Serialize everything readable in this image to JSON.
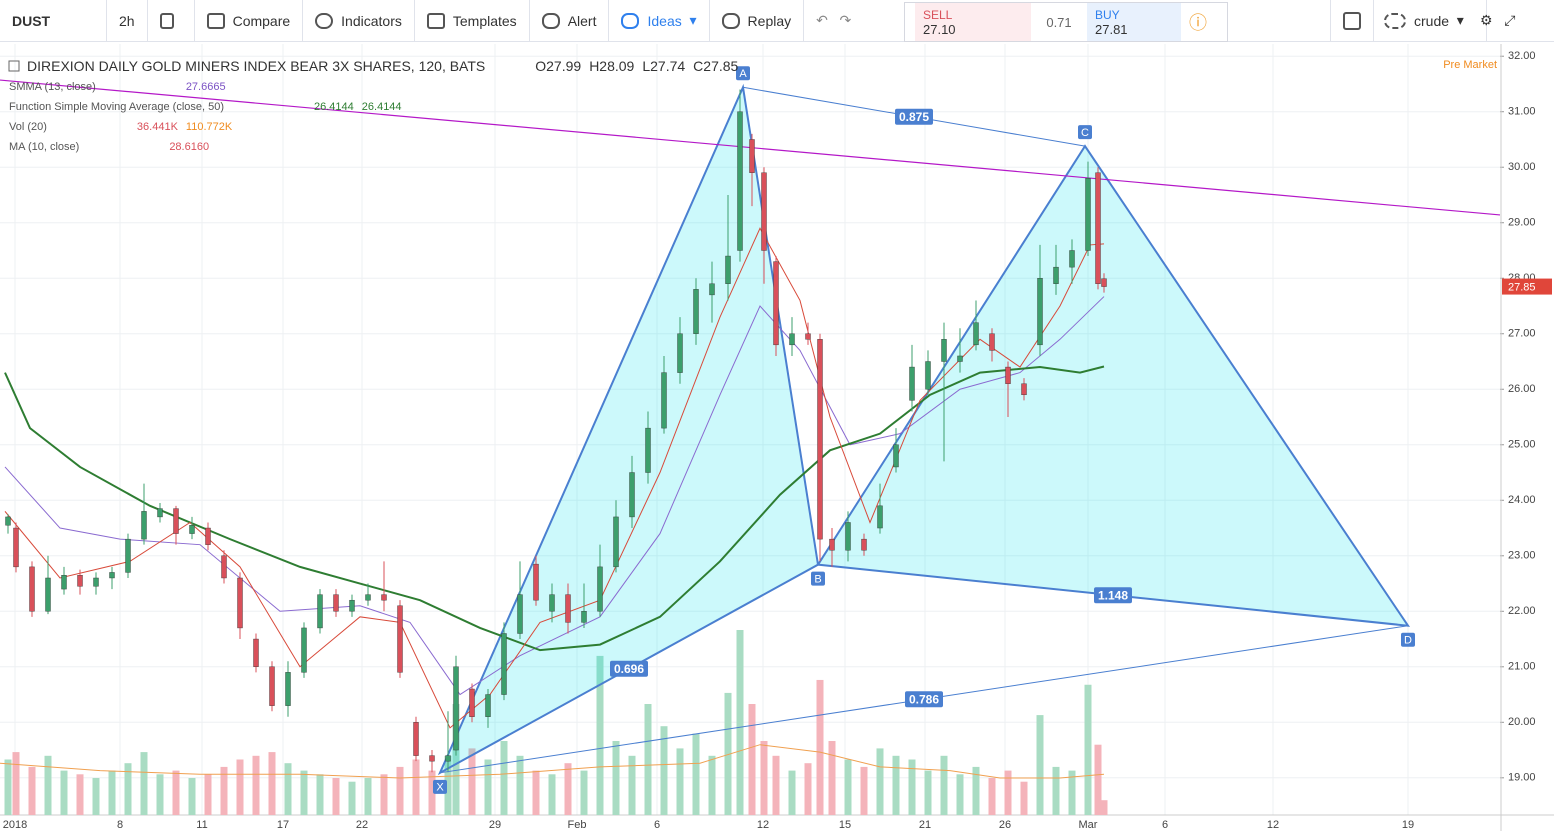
{
  "toolbar": {
    "symbol": "DUST",
    "interval": "2h",
    "items": [
      "Compare",
      "Indicators",
      "Templates",
      "Alert",
      "Ideas",
      "Replay"
    ],
    "sell_label": "SELL",
    "sell_price": "27.10",
    "spread": "0.71",
    "buy_label": "BUY",
    "buy_price": "27.81",
    "layout": "crude"
  },
  "chart_data": {
    "type": "candlestick",
    "title": "DIREXION DAILY GOLD MINERS INDEX BEAR 3X SHARES, 120, BATS",
    "ohlc": [
      {
        "value": 27.99,
        "label": "O27.99"
      },
      {
        "value": 28.09,
        "label": "H28.09"
      },
      {
        "value": 27.74,
        "label": "L27.74"
      },
      {
        "value": 27.85,
        "label": "C27.85"
      }
    ],
    "pre_market": "Pre Market",
    "last_price": 27.85,
    "ylim": [
      18.33,
      32.22
    ],
    "yticks": [
      {
        "value": 19,
        "label": "19.00"
      },
      {
        "value": 20,
        "label": "20.00"
      },
      {
        "value": 21,
        "label": "21.00"
      },
      {
        "value": 22,
        "label": "22.00"
      },
      {
        "value": 23,
        "label": "23.00"
      },
      {
        "value": 24,
        "label": "24.00"
      },
      {
        "value": 25,
        "label": "25.00"
      },
      {
        "value": 26,
        "label": "26.00"
      },
      {
        "value": 27,
        "label": "27.00"
      },
      {
        "value": 28,
        "label": "28.00"
      },
      {
        "value": 29,
        "label": "29.00"
      },
      {
        "value": 30,
        "label": "30.00"
      },
      {
        "value": 31,
        "label": "31.00"
      },
      {
        "value": 32,
        "label": "32.00"
      }
    ],
    "xlim": [
      0,
      1500
    ],
    "xticks": [
      {
        "value": 15,
        "label": "2018"
      },
      {
        "value": 120,
        "label": "8"
      },
      {
        "value": 202,
        "label": "11"
      },
      {
        "value": 283,
        "label": "17"
      },
      {
        "value": 362,
        "label": "22"
      },
      {
        "value": 495,
        "label": "29"
      },
      {
        "value": 577,
        "label": "Feb"
      },
      {
        "value": 657,
        "label": "6"
      },
      {
        "value": 763,
        "label": "12"
      },
      {
        "value": 845,
        "label": "15"
      },
      {
        "value": 925,
        "label": "21"
      },
      {
        "value": 1005,
        "label": "26"
      },
      {
        "value": 1088,
        "label": "Mar"
      },
      {
        "value": 1165,
        "label": "6"
      },
      {
        "value": 1273,
        "label": "12"
      },
      {
        "value": 1408,
        "label": "19"
      }
    ],
    "colors": {
      "up": "#3c9f6c",
      "down": "#d9505a",
      "vol_up": "#a9dcc3",
      "vol_down": "#f4b3ba"
    },
    "candles": [
      [
        8,
        23.55,
        23.75,
        23.4,
        23.7,
        150
      ],
      [
        16,
        23.5,
        23.6,
        22.7,
        22.8,
        170
      ],
      [
        32,
        22.8,
        22.9,
        21.9,
        22.0,
        130
      ],
      [
        48,
        22.0,
        23.0,
        21.95,
        22.6,
        160
      ],
      [
        64,
        22.4,
        22.8,
        22.3,
        22.65,
        120
      ],
      [
        80,
        22.65,
        22.75,
        22.3,
        22.45,
        110
      ],
      [
        96,
        22.45,
        22.7,
        22.3,
        22.6,
        100
      ],
      [
        112,
        22.6,
        22.8,
        22.4,
        22.7,
        120
      ],
      [
        128,
        22.7,
        23.4,
        22.6,
        23.3,
        140
      ],
      [
        144,
        23.3,
        24.3,
        23.2,
        23.8,
        170
      ],
      [
        160,
        23.7,
        23.95,
        23.6,
        23.85,
        110
      ],
      [
        176,
        23.85,
        23.9,
        23.2,
        23.4,
        120
      ],
      [
        192,
        23.4,
        23.7,
        23.3,
        23.55,
        100
      ],
      [
        208,
        23.5,
        23.6,
        23.1,
        23.2,
        110
      ],
      [
        224,
        23.0,
        23.1,
        22.5,
        22.6,
        130
      ],
      [
        240,
        22.6,
        22.7,
        21.5,
        21.7,
        150
      ],
      [
        256,
        21.5,
        21.6,
        20.9,
        21.0,
        160
      ],
      [
        272,
        21.0,
        21.1,
        20.2,
        20.3,
        170
      ],
      [
        288,
        20.3,
        21.1,
        20.1,
        20.9,
        140
      ],
      [
        304,
        20.9,
        21.8,
        20.8,
        21.7,
        120
      ],
      [
        320,
        21.7,
        22.4,
        21.6,
        22.3,
        110
      ],
      [
        336,
        22.3,
        22.4,
        21.9,
        22.0,
        100
      ],
      [
        352,
        22.0,
        22.3,
        21.9,
        22.2,
        90
      ],
      [
        368,
        22.2,
        22.5,
        22.1,
        22.3,
        100
      ],
      [
        384,
        22.3,
        22.9,
        22.0,
        22.2,
        110
      ],
      [
        400,
        22.1,
        22.2,
        20.8,
        20.9,
        130
      ],
      [
        416,
        20.0,
        20.1,
        19.3,
        19.4,
        150
      ],
      [
        432,
        19.4,
        19.5,
        19.1,
        19.3,
        120
      ],
      [
        448,
        19.3,
        20.2,
        19.1,
        19.4,
        160
      ],
      [
        456,
        19.5,
        21.2,
        19.4,
        21.0,
        300
      ],
      [
        472,
        20.6,
        20.7,
        20.0,
        20.1,
        180
      ],
      [
        488,
        20.1,
        20.6,
        19.9,
        20.5,
        150
      ],
      [
        504,
        20.5,
        21.8,
        20.4,
        21.6,
        200
      ],
      [
        520,
        21.6,
        22.9,
        21.5,
        22.3,
        160
      ],
      [
        536,
        22.85,
        23.0,
        22.1,
        22.2,
        120
      ],
      [
        552,
        22.0,
        22.5,
        21.8,
        22.3,
        110
      ],
      [
        568,
        22.3,
        22.5,
        21.6,
        21.8,
        140
      ],
      [
        584,
        21.8,
        22.5,
        21.7,
        22.0,
        120
      ],
      [
        600,
        22.0,
        23.2,
        21.9,
        22.8,
        430
      ],
      [
        616,
        22.8,
        24.0,
        22.7,
        23.7,
        200
      ],
      [
        632,
        23.7,
        24.8,
        23.5,
        24.5,
        160
      ],
      [
        648,
        24.5,
        25.6,
        24.3,
        25.3,
        300
      ],
      [
        664,
        25.3,
        26.6,
        25.2,
        26.3,
        240
      ],
      [
        680,
        26.3,
        27.3,
        26.1,
        27.0,
        180
      ],
      [
        696,
        27.0,
        28.0,
        26.8,
        27.8,
        220
      ],
      [
        712,
        27.7,
        28.3,
        27.2,
        27.9,
        160
      ],
      [
        728,
        27.9,
        29.5,
        27.6,
        28.4,
        330
      ],
      [
        740,
        28.5,
        31.4,
        28.3,
        31.0,
        500
      ],
      [
        752,
        30.5,
        30.6,
        29.3,
        29.9,
        300
      ],
      [
        764,
        29.9,
        30.0,
        27.9,
        28.5,
        200
      ],
      [
        776,
        28.3,
        28.4,
        26.6,
        26.8,
        160
      ],
      [
        792,
        26.8,
        27.3,
        26.6,
        27.0,
        120
      ],
      [
        808,
        27.0,
        27.2,
        26.8,
        26.9,
        140
      ],
      [
        820,
        26.9,
        27.0,
        22.9,
        23.3,
        365
      ],
      [
        832,
        23.3,
        23.5,
        22.8,
        23.1,
        200
      ],
      [
        848,
        23.1,
        23.8,
        22.9,
        23.6,
        150
      ],
      [
        864,
        23.3,
        23.4,
        23.0,
        23.1,
        130
      ],
      [
        880,
        23.5,
        24.3,
        23.4,
        23.9,
        180
      ],
      [
        896,
        24.6,
        25.3,
        24.5,
        25.0,
        160
      ],
      [
        912,
        25.8,
        26.8,
        25.6,
        26.4,
        150
      ],
      [
        928,
        26.0,
        26.7,
        25.9,
        26.5,
        120
      ],
      [
        944,
        26.5,
        27.2,
        24.7,
        26.9,
        160
      ],
      [
        960,
        26.5,
        27.1,
        26.3,
        26.6,
        110
      ],
      [
        976,
        26.8,
        27.6,
        26.7,
        27.2,
        130
      ],
      [
        992,
        27.0,
        27.1,
        26.5,
        26.7,
        100
      ],
      [
        1008,
        26.4,
        26.5,
        25.5,
        26.1,
        120
      ],
      [
        1024,
        26.1,
        26.2,
        25.8,
        25.9,
        90
      ],
      [
        1040,
        26.8,
        28.6,
        26.6,
        28.0,
        270
      ],
      [
        1056,
        27.9,
        28.6,
        27.7,
        28.2,
        130
      ],
      [
        1072,
        28.2,
        28.7,
        27.9,
        28.5,
        120
      ],
      [
        1088,
        28.5,
        30.1,
        28.4,
        29.8,
        352
      ],
      [
        1098,
        29.9,
        30.0,
        27.8,
        27.9,
        190
      ],
      [
        1104,
        27.99,
        28.09,
        27.74,
        27.85,
        40
      ]
    ],
    "indicators": [
      {
        "name": "SMMA (13, close)",
        "values": [
          "27.6665"
        ],
        "color": "#8a6ad0",
        "vcolor": "#7b52c4",
        "points": [
          [
            5,
            24.6
          ],
          [
            60,
            23.5
          ],
          [
            120,
            23.3
          ],
          [
            200,
            23.2
          ],
          [
            280,
            22.0
          ],
          [
            360,
            22.1
          ],
          [
            410,
            21.8
          ],
          [
            460,
            20.5
          ],
          [
            520,
            21.2
          ],
          [
            600,
            21.9
          ],
          [
            660,
            23.4
          ],
          [
            720,
            25.9
          ],
          [
            760,
            27.5
          ],
          [
            800,
            26.7
          ],
          [
            850,
            25.0
          ],
          [
            900,
            25.2
          ],
          [
            960,
            26.0
          ],
          [
            1020,
            26.3
          ],
          [
            1060,
            26.9
          ],
          [
            1104,
            27.67
          ]
        ]
      },
      {
        "name": "Function Simple Moving Average (close, 50)",
        "values": [
          "26.4144",
          "26.4144"
        ],
        "color": "#2e7d32",
        "vcolor": "#2e7d32",
        "points": [
          [
            5,
            26.3
          ],
          [
            30,
            25.3
          ],
          [
            80,
            24.6
          ],
          [
            150,
            23.9
          ],
          [
            230,
            23.3
          ],
          [
            300,
            22.8
          ],
          [
            360,
            22.5
          ],
          [
            420,
            22.2
          ],
          [
            480,
            21.7
          ],
          [
            540,
            21.3
          ],
          [
            600,
            21.4
          ],
          [
            660,
            21.9
          ],
          [
            720,
            22.9
          ],
          [
            780,
            24.1
          ],
          [
            830,
            24.9
          ],
          [
            880,
            25.2
          ],
          [
            930,
            25.9
          ],
          [
            980,
            26.3
          ],
          [
            1040,
            26.4
          ],
          [
            1080,
            26.3
          ],
          [
            1104,
            26.41
          ]
        ]
      },
      {
        "name": "Vol (20)",
        "values": [
          "36.441K",
          "110.772K"
        ],
        "color": "#f0a050",
        "vcolor": "#d9505a",
        "volume": true,
        "points": [
          [
            0,
            140
          ],
          [
            100,
            120
          ],
          [
            200,
            110
          ],
          [
            300,
            110
          ],
          [
            400,
            100
          ],
          [
            500,
            110
          ],
          [
            600,
            130
          ],
          [
            700,
            140
          ],
          [
            760,
            190
          ],
          [
            820,
            170
          ],
          [
            880,
            130
          ],
          [
            950,
            120
          ],
          [
            1000,
            100
          ],
          [
            1060,
            100
          ],
          [
            1104,
            110
          ]
        ]
      },
      {
        "name": "MA (10, close)",
        "values": [
          "28.6160"
        ],
        "color": "#d84a3a",
        "vcolor": "#d9505a",
        "points": [
          [
            5,
            23.8
          ],
          [
            60,
            22.6
          ],
          [
            130,
            22.9
          ],
          [
            190,
            23.6
          ],
          [
            240,
            22.8
          ],
          [
            300,
            21.0
          ],
          [
            360,
            21.9
          ],
          [
            400,
            21.8
          ],
          [
            450,
            19.9
          ],
          [
            490,
            20.5
          ],
          [
            540,
            21.8
          ],
          [
            600,
            22.2
          ],
          [
            660,
            24.5
          ],
          [
            720,
            27.3
          ],
          [
            760,
            28.9
          ],
          [
            800,
            27.6
          ],
          [
            830,
            25.5
          ],
          [
            870,
            23.6
          ],
          [
            920,
            25.8
          ],
          [
            980,
            26.9
          ],
          [
            1020,
            26.4
          ],
          [
            1060,
            27.5
          ],
          [
            1090,
            28.6
          ],
          [
            1104,
            28.62
          ]
        ]
      }
    ],
    "trendline": {
      "color": "#b418c8",
      "points": [
        [
          0,
          31.57
        ],
        [
          1500,
          29.14
        ]
      ]
    },
    "pattern": {
      "points": [
        {
          "label": "X",
          "x": 440,
          "value": 19.09
        },
        {
          "label": "A",
          "x": 743,
          "value": 31.44
        },
        {
          "label": "B",
          "x": 818,
          "value": 22.84
        },
        {
          "label": "C",
          "x": 1085,
          "value": 30.38
        },
        {
          "label": "D",
          "x": 1408,
          "value": 21.74
        }
      ],
      "ratios": [
        {
          "label": "0.875",
          "from": 1,
          "to": 3
        },
        {
          "label": "0.696",
          "from": 0,
          "to": 2
        },
        {
          "label": "1.148",
          "from": 2,
          "to": 4
        },
        {
          "label": "0.786",
          "from": 0,
          "to": 4
        }
      ]
    }
  }
}
